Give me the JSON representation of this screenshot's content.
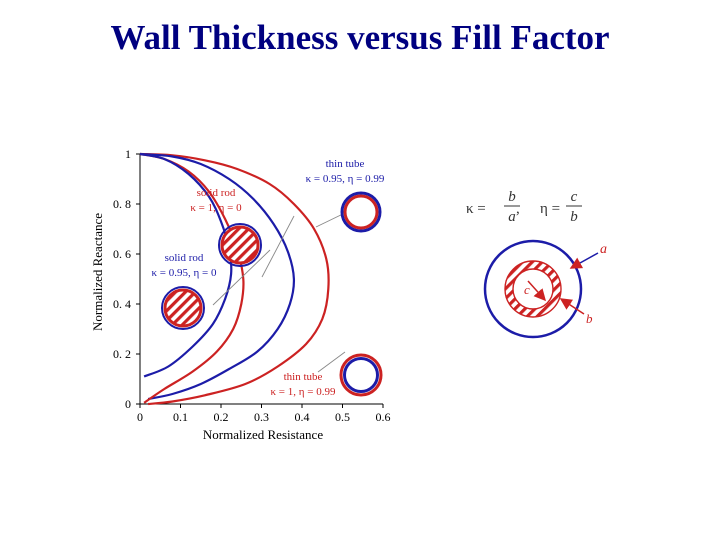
{
  "slide": {
    "title": "Wall Thickness versus Fill Factor"
  },
  "colors": {
    "red": "#cc2222",
    "blue": "#1c1ca8",
    "title": "#000080",
    "axis": "#000000"
  },
  "chart_data": {
    "type": "line",
    "title": "",
    "xlabel": "Normalized Resistance",
    "ylabel": "Normalized Reactance",
    "xlim": [
      0,
      0.6
    ],
    "ylim": [
      0,
      1
    ],
    "xticks": [
      0,
      0.1,
      0.2,
      0.3,
      0.4,
      0.5,
      0.6
    ],
    "yticks": [
      0,
      0.2,
      0.4,
      0.6,
      0.8,
      1
    ],
    "xtick_labels": [
      "0",
      "0.1",
      "0.2",
      "0.3",
      "0.4",
      "0.5",
      "0.6"
    ],
    "ytick_labels": [
      "0",
      "0. 2",
      "0. 4",
      "0. 6",
      "0. 8",
      "1"
    ],
    "grid": false,
    "series": [
      {
        "color": "red",
        "x": [
          0,
          0.08,
          0.16,
          0.24,
          0.32,
          0.38,
          0.43,
          0.46,
          0.465,
          0.45,
          0.41,
          0.34,
          0.26,
          0.16,
          0.08,
          0.02
        ],
        "y": [
          1,
          0.995,
          0.975,
          0.94,
          0.88,
          0.8,
          0.7,
          0.58,
          0.46,
          0.34,
          0.24,
          0.15,
          0.08,
          0.035,
          0.01,
          0
        ]
      },
      {
        "color": "blue",
        "x": [
          0,
          0.08,
          0.15,
          0.22,
          0.28,
          0.33,
          0.365,
          0.38,
          0.37,
          0.34,
          0.29,
          0.22,
          0.15,
          0.08,
          0.02
        ],
        "y": [
          1,
          0.99,
          0.96,
          0.9,
          0.82,
          0.72,
          0.61,
          0.5,
          0.4,
          0.3,
          0.21,
          0.14,
          0.08,
          0.04,
          0.02
        ]
      },
      {
        "color": "red",
        "x": [
          0,
          0.06,
          0.12,
          0.17,
          0.21,
          0.24,
          0.255,
          0.25,
          0.23,
          0.19,
          0.13,
          0.06,
          0.01
        ],
        "y": [
          1,
          0.98,
          0.93,
          0.85,
          0.74,
          0.62,
          0.5,
          0.4,
          0.3,
          0.21,
          0.13,
          0.06,
          0.005
        ]
      },
      {
        "color": "blue",
        "x": [
          0,
          0.06,
          0.12,
          0.17,
          0.2,
          0.22,
          0.225,
          0.21,
          0.18,
          0.13,
          0.07,
          0.01
        ],
        "y": [
          1,
          0.98,
          0.92,
          0.83,
          0.73,
          0.62,
          0.52,
          0.42,
          0.32,
          0.23,
          0.15,
          0.11
        ]
      }
    ],
    "annotations": [
      {
        "line1": "thin tube",
        "line2": "κ = 0.95, η = 0.99",
        "color": "blue"
      },
      {
        "line1": "solid rod",
        "line2": "κ = 1, η = 0",
        "color": "red"
      },
      {
        "line1": "solid rod",
        "line2": "κ = 0.95, η = 0",
        "color": "blue"
      },
      {
        "line1": "thin tube",
        "line2": "κ = 1, η = 0.99",
        "color": "red"
      }
    ]
  },
  "formula": {
    "kappa": "κ =",
    "kappa_num": "b",
    "kappa_den": "a",
    "separator": ",",
    "eta": "η =",
    "eta_num": "c",
    "eta_den": "b"
  },
  "cross_section": {
    "label_a": "a",
    "label_b": "b",
    "label_c": "c"
  }
}
